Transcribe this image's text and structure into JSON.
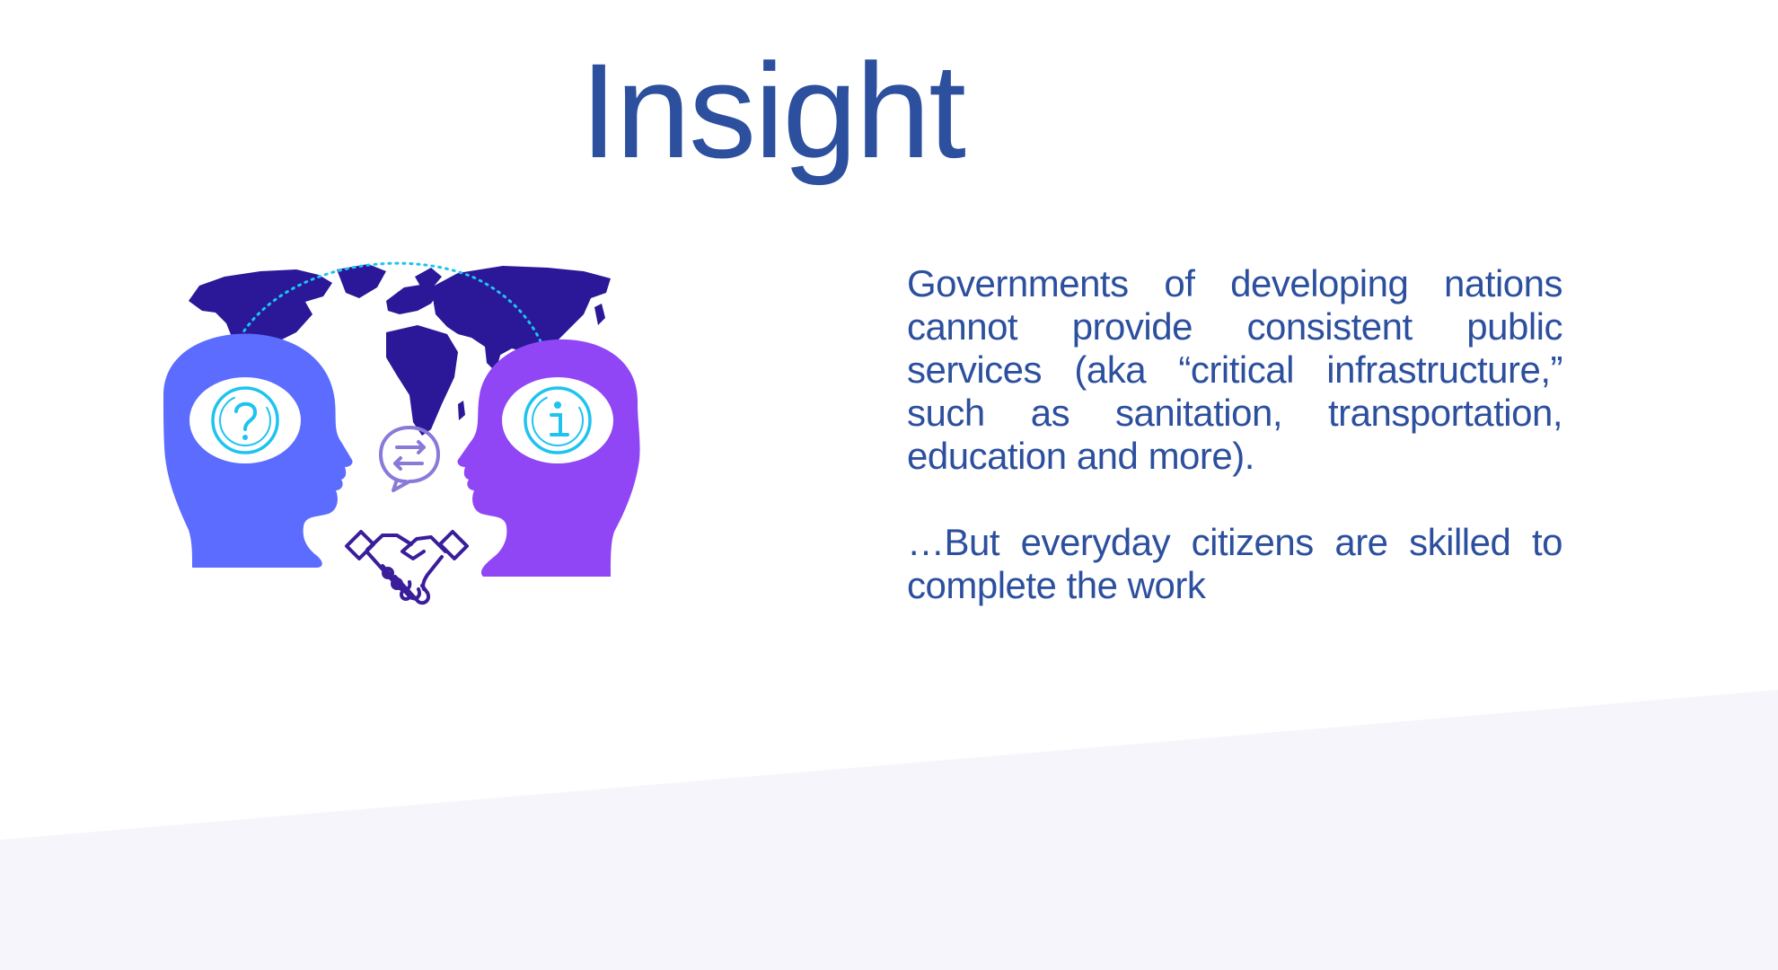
{
  "slide": {
    "title": "Insight",
    "paragraphs": [
      "Governments of developing nations cannot provide consistent public services (aka “critical infrastructure,” such as sanitation, transportation, education and more).",
      "…But everyday citizens are skilled to complete the work"
    ]
  },
  "illustration": {
    "icons": [
      "world-map-icon",
      "head-left-icon",
      "head-right-icon",
      "question-icon",
      "info-icon",
      "chat-exchange-icon",
      "handshake-icon"
    ]
  },
  "colors": {
    "title": "#2c4f9e",
    "body": "#2c4f9e",
    "map": "#2a1898",
    "head_left": "#5b6cff",
    "head_right": "#9046f5",
    "icon_cyan": "#1ec3f0",
    "chat": "#8a7ad8",
    "handshake": "#3a1d9a",
    "background_wedge": "#f6f5fc"
  }
}
